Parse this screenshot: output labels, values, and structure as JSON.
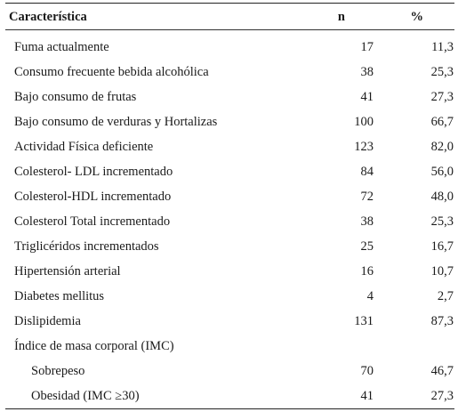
{
  "table": {
    "headers": {
      "label": "Característica",
      "n": "n",
      "pct": "%"
    },
    "rows": [
      {
        "label": "Fuma actualmente",
        "n": "17",
        "pct": "11,3"
      },
      {
        "label": "Consumo frecuente bebida alcohólica",
        "n": "38",
        "pct": "25,3"
      },
      {
        "label": "Bajo consumo de frutas",
        "n": "41",
        "pct": "27,3"
      },
      {
        "label": "Bajo consumo de verduras y Hortalizas",
        "n": "100",
        "pct": "66,7"
      },
      {
        "label": "Actividad Física deficiente",
        "n": "123",
        "pct": "82,0"
      },
      {
        "label": "Colesterol- LDL incrementado",
        "n": "84",
        "pct": "56,0"
      },
      {
        "label": "Colesterol-HDL incrementado",
        "n": "72",
        "pct": "48,0"
      },
      {
        "label": "Colesterol Total incrementado",
        "n": "38",
        "pct": "25,3"
      },
      {
        "label": "Triglicéridos incrementados",
        "n": "25",
        "pct": "16,7"
      },
      {
        "label": "Hipertensión arterial",
        "n": "16",
        "pct": "10,7"
      },
      {
        "label": "Diabetes mellitus",
        "n": "4",
        "pct": "2,7"
      },
      {
        "label": "Dislipidemia",
        "n": "131",
        "pct": "87,3"
      },
      {
        "label": "Índice de masa corporal (IMC)",
        "n": "",
        "pct": ""
      },
      {
        "label": "Sobrepeso",
        "n": "70",
        "pct": "46,7",
        "indent": true
      },
      {
        "label": "Obesidad (IMC ≥30)",
        "n": "41",
        "pct": "27,3",
        "indent": true
      }
    ]
  }
}
